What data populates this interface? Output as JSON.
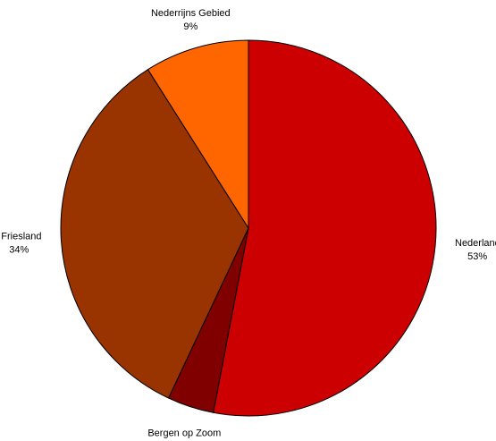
{
  "chart_data": {
    "type": "pie",
    "title": "",
    "start": "12 o'clock",
    "direction": "clockwise",
    "slices": [
      {
        "label": "Nederland",
        "pct_label": "53%",
        "value": 53,
        "color": "#CC0000"
      },
      {
        "label": "Bergen op Zoom",
        "pct_label": "4%",
        "value": 4,
        "color": "#800000"
      },
      {
        "label": "Friesland",
        "pct_label": "34%",
        "value": 34,
        "color": "#993300"
      },
      {
        "label": "Nederrijns Gebied",
        "pct_label": "9%",
        "value": 9,
        "color": "#FF6600"
      }
    ]
  }
}
